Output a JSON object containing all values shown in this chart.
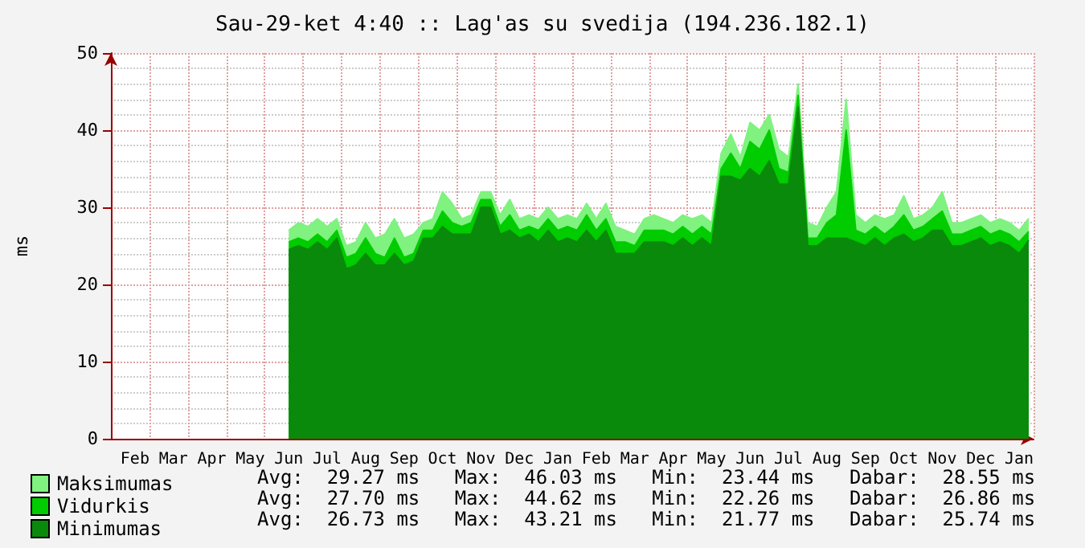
{
  "chart_data": {
    "type": "area",
    "title": "Sau-29-ket 4:40 :: Lag'as su svedija (194.236.182.1)",
    "ylabel": "ms",
    "categories": [
      null,
      null,
      "Feb",
      null,
      null,
      null,
      "Mar",
      null,
      null,
      null,
      "Apr",
      null,
      null,
      null,
      "May",
      null,
      null,
      null,
      "Jun",
      null,
      null,
      null,
      "Jul",
      null,
      null,
      null,
      "Aug",
      null,
      null,
      null,
      "Sep",
      null,
      null,
      null,
      "Oct",
      null,
      null,
      null,
      "Nov",
      null,
      null,
      null,
      "Dec",
      null,
      null,
      null,
      "Jan",
      null,
      null,
      null,
      "Feb",
      null,
      null,
      null,
      "Mar",
      null,
      null,
      null,
      "Apr",
      null,
      null,
      null,
      "May",
      null,
      null,
      null,
      "Jun",
      null,
      null,
      null,
      "Jul",
      null,
      null,
      null,
      "Aug",
      null,
      null,
      null,
      "Sep",
      null,
      null,
      null,
      "Oct",
      null,
      null,
      null,
      "Nov",
      null,
      null,
      null,
      "Dec",
      null,
      null,
      null,
      "Jan",
      null
    ],
    "series": [
      {
        "name": "Maksimumas",
        "color": "#7ff27f",
        "values": [
          null,
          null,
          null,
          null,
          null,
          null,
          null,
          null,
          null,
          null,
          null,
          null,
          null,
          null,
          null,
          null,
          null,
          null,
          27,
          28,
          27.5,
          28.5,
          27.5,
          28.5,
          25,
          25.5,
          28,
          26,
          26.5,
          28.5,
          26,
          26.5,
          28,
          28.5,
          32,
          30.5,
          28.5,
          29,
          32,
          32,
          29,
          31,
          28.5,
          29,
          28.5,
          30,
          28.5,
          29,
          28.5,
          30.5,
          28.5,
          30.5,
          27.5,
          27,
          26.5,
          28.5,
          29,
          28.5,
          28,
          29,
          28.5,
          29,
          28,
          37,
          39.5,
          36.5,
          41,
          40,
          42,
          37.5,
          36.5,
          46,
          28,
          27.5,
          30,
          32,
          44,
          29,
          28,
          29,
          28.5,
          29,
          31.5,
          28.5,
          29,
          30,
          32,
          28,
          28,
          28.5,
          29,
          28,
          28.5,
          28,
          27,
          28.55
        ]
      },
      {
        "name": "Vidurkis",
        "color": "#00cc00",
        "values": [
          null,
          null,
          null,
          null,
          null,
          null,
          null,
          null,
          null,
          null,
          null,
          null,
          null,
          null,
          null,
          null,
          null,
          null,
          25.5,
          26,
          25.5,
          26.5,
          25.5,
          27,
          23.5,
          24,
          26,
          24,
          23.5,
          26,
          23.5,
          24,
          27,
          27,
          29.5,
          28,
          27.5,
          28,
          31,
          31,
          27.5,
          29,
          27,
          27.5,
          27,
          28.5,
          27,
          27.5,
          27,
          29,
          27,
          28.5,
          25.5,
          25.5,
          25,
          27,
          27,
          27,
          26.5,
          27.5,
          26.5,
          27.5,
          26.5,
          35,
          37,
          35,
          38.5,
          37.5,
          40,
          35,
          34.5,
          44.5,
          26,
          26,
          28,
          29,
          40,
          27,
          26.5,
          27.5,
          26.5,
          27.5,
          29,
          27,
          27.5,
          28.5,
          29.5,
          26.5,
          26.5,
          27,
          27.5,
          26.5,
          27,
          26.5,
          25.5,
          26.86
        ]
      },
      {
        "name": "Minimumas",
        "color": "#0a8a0a",
        "values": [
          null,
          null,
          null,
          null,
          null,
          null,
          null,
          null,
          null,
          null,
          null,
          null,
          null,
          null,
          null,
          null,
          null,
          null,
          24.5,
          25,
          24.5,
          25.5,
          24.5,
          26,
          22,
          22.5,
          24,
          22.5,
          22.5,
          24,
          22.5,
          23,
          26,
          26,
          27.5,
          26.5,
          26.5,
          26.5,
          30,
          30,
          26.5,
          27,
          26,
          26.5,
          25.5,
          27,
          25.5,
          26,
          25.5,
          27,
          25.5,
          27,
          24,
          24,
          24,
          25.5,
          25.5,
          25.5,
          25,
          26,
          25,
          26,
          25,
          34,
          34,
          33.5,
          35,
          34,
          36,
          33,
          33,
          43,
          25,
          25,
          26,
          26,
          26,
          25.5,
          25,
          26,
          25,
          26,
          26.5,
          25.5,
          26,
          27,
          27,
          25,
          25,
          25.5,
          26,
          25,
          25.5,
          25,
          24,
          25.74
        ]
      }
    ],
    "ylim": [
      0,
      50
    ],
    "yticks": [
      0,
      10,
      20,
      30,
      40,
      50
    ],
    "grid": true,
    "legend": "bottom left",
    "marker": "none",
    "annotations": [
      "Avg:  29.27 ms   Max:  46.03 ms   Min:  23.44 ms   Dabar:  28.55 ms",
      "Avg:  27.70 ms   Max:  44.62 ms   Min:  22.26 ms   Dabar:  26.86 ms",
      "Avg:  26.73 ms   Max:  43.21 ms   Min:  21.77 ms   Dabar:  25.74 ms"
    ]
  }
}
